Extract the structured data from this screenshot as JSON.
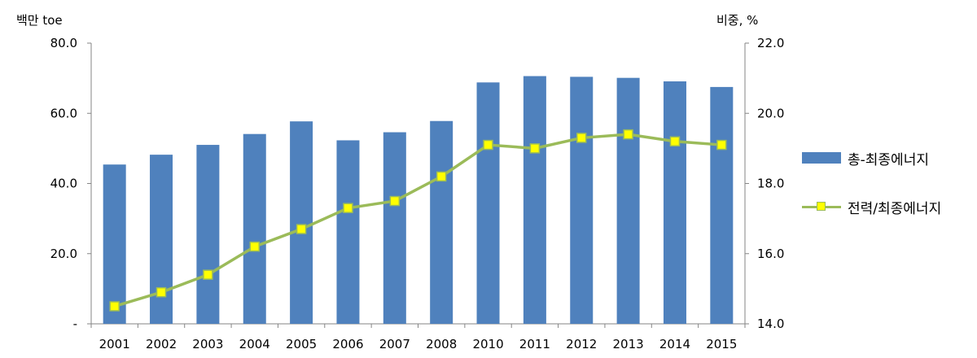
{
  "chart_data": {
    "type": "bar+line",
    "left_axis_label": "백만 toe",
    "right_axis_label": "비중, %",
    "categories": [
      "2001",
      "2002",
      "2003",
      "2004",
      "2005",
      "2006",
      "2007",
      "2008",
      "2010",
      "2011",
      "2012",
      "2013",
      "2014",
      "2015"
    ],
    "left_ticks": [
      "-",
      "20.0",
      "40.0",
      "60.0",
      "80.0"
    ],
    "right_ticks": [
      "14.0",
      "16.0",
      "18.0",
      "20.0",
      "22.0"
    ],
    "ylim_left": [
      0,
      80
    ],
    "ylim_right": [
      14,
      22
    ],
    "series": [
      {
        "name": "총-최종에너지",
        "type": "bar",
        "axis": "left",
        "color": "#4f81bd",
        "values": [
          45.4,
          48.2,
          51.0,
          54.1,
          57.7,
          52.3,
          54.6,
          57.8,
          68.8,
          70.6,
          70.4,
          70.1,
          69.1,
          67.5
        ]
      },
      {
        "name": "전력/최종에너지",
        "type": "line",
        "axis": "right",
        "color": "#9bbb59",
        "marker_color": "#ffff00",
        "values": [
          14.5,
          14.9,
          15.4,
          16.2,
          16.7,
          17.3,
          17.5,
          18.2,
          19.1,
          19.0,
          19.3,
          19.4,
          19.2,
          19.1
        ]
      }
    ]
  }
}
